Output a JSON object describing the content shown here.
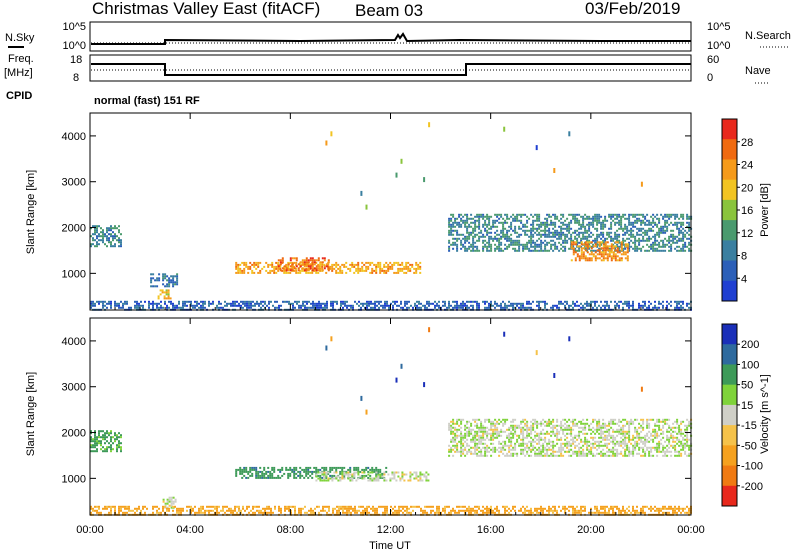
{
  "header": {
    "title": "Christmas Valley East (fitACF)",
    "beam": "Beam 03",
    "date": "03/Feb/2019"
  },
  "noise_panel": {
    "left_label": "N.Sky",
    "right_label": "N.Search",
    "left_ticks": [
      "10^5",
      "10^0"
    ],
    "right_ticks": [
      "10^5",
      "10^0"
    ]
  },
  "freq_panel": {
    "label_line1": "Freq.",
    "label_line2": "[MHz]",
    "left_ticks": [
      "18",
      "8"
    ],
    "right_label": "Nave",
    "right_ticks": [
      "60",
      "0"
    ],
    "cpid_label": "CPID",
    "cpid_value": "normal (fast) 151 RF"
  },
  "x_axis": {
    "label": "Time UT",
    "ticks": [
      "00:00",
      "04:00",
      "08:00",
      "12:00",
      "16:00",
      "20:00",
      "00:00"
    ]
  },
  "colors": {
    "power_scale": [
      "#1f3fd1",
      "#2b5fb8",
      "#3a7fa0",
      "#4a9a6e",
      "#8ac43c",
      "#f2c422",
      "#f59a1a",
      "#f06a10",
      "#e8281c"
    ],
    "velocity_scale": [
      "#1a2fb8",
      "#2e6a9e",
      "#3d9a58",
      "#7fd33a",
      "#cfcfc7",
      "#f5c24a",
      "#f5a11f",
      "#f07a12",
      "#e8281c"
    ]
  },
  "chart_data": [
    {
      "type": "heatmap",
      "title": "Power",
      "xlabel": "Time UT",
      "ylabel": "Slant Range [km]",
      "x_range_hours": [
        0,
        24
      ],
      "ylim": [
        200,
        4500
      ],
      "y_ticks": [
        1000,
        2000,
        3000,
        4000
      ],
      "colorbar": {
        "label": "Power [dB]",
        "range": [
          0,
          32
        ],
        "ticks": [
          4,
          8,
          12,
          16,
          20,
          24,
          28
        ]
      },
      "features": [
        {
          "time_start_h": 0.0,
          "time_end_h": 1.2,
          "range_km": [
            1600,
            2050
          ],
          "value_db": 10
        },
        {
          "time_start_h": 2.4,
          "time_end_h": 3.5,
          "range_km": [
            700,
            1000
          ],
          "value_db": 8
        },
        {
          "time_start_h": 2.7,
          "time_end_h": 3.2,
          "range_km": [
            450,
            650
          ],
          "value_db": 20
        },
        {
          "time_start_h": 5.8,
          "time_end_h": 13.2,
          "range_km": [
            1000,
            1250
          ],
          "value_db": 22
        },
        {
          "time_start_h": 7.5,
          "time_end_h": 9.5,
          "range_km": [
            1050,
            1350
          ],
          "value_db": 26
        },
        {
          "time_start_h": 14.3,
          "time_end_h": 24.0,
          "range_km": [
            1500,
            2300
          ],
          "value_db": 10
        },
        {
          "time_start_h": 19.2,
          "time_end_h": 21.5,
          "range_km": [
            1300,
            1700
          ],
          "value_db": 24
        },
        {
          "time_start_h": 0.0,
          "time_end_h": 24.0,
          "range_km": [
            200,
            400
          ],
          "value_db": 6
        }
      ]
    },
    {
      "type": "heatmap",
      "title": "Velocity",
      "xlabel": "Time UT",
      "ylabel": "Slant Range [km]",
      "x_range_hours": [
        0,
        24
      ],
      "ylim": [
        200,
        4500
      ],
      "y_ticks": [
        1000,
        2000,
        3000,
        4000
      ],
      "colorbar": {
        "label": "Velocity [m s^-1]",
        "range": [
          -250,
          250
        ],
        "ticks": [
          200,
          100,
          50,
          15,
          -15,
          -50,
          -100,
          -200
        ]
      },
      "features": [
        {
          "time_start_h": 0.0,
          "time_end_h": 1.2,
          "range_km": [
            1600,
            2050
          ],
          "value_ms": 40
        },
        {
          "time_start_h": 2.9,
          "time_end_h": 3.4,
          "range_km": [
            350,
            600
          ],
          "value_ms": 0
        },
        {
          "time_start_h": 5.8,
          "time_end_h": 11.8,
          "range_km": [
            1000,
            1250
          ],
          "value_ms": 60
        },
        {
          "time_start_h": 9.0,
          "time_end_h": 13.5,
          "range_km": [
            950,
            1150
          ],
          "value_ms": 0
        },
        {
          "time_start_h": 14.3,
          "time_end_h": 24.0,
          "range_km": [
            1500,
            2300
          ],
          "value_ms": 0
        },
        {
          "time_start_h": 0.0,
          "time_end_h": 24.0,
          "range_km": [
            200,
            400
          ],
          "value_ms": -60
        }
      ]
    }
  ]
}
